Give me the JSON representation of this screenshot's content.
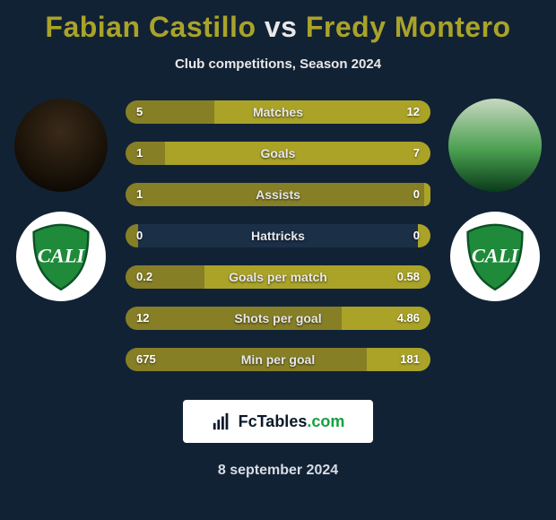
{
  "title": {
    "player1": "Fabian Castillo",
    "vs": "vs",
    "player2": "Fredy Montero"
  },
  "subtitle": "Club competitions, Season 2024",
  "colors": {
    "background": "#122235",
    "track": "#1b2f47",
    "left_fill": "#867f26",
    "right_fill": "#aaa328",
    "accent": "#aaa328",
    "text": "#e8e8e8"
  },
  "bars": [
    {
      "label": "Matches",
      "left": "5",
      "right": "12",
      "left_pct": 29,
      "right_pct": 71
    },
    {
      "label": "Goals",
      "left": "1",
      "right": "7",
      "left_pct": 13,
      "right_pct": 87
    },
    {
      "label": "Assists",
      "left": "1",
      "right": "0",
      "left_pct": 98,
      "right_pct": 2
    },
    {
      "label": "Hattricks",
      "left": "0",
      "right": "0",
      "left_pct": 4,
      "right_pct": 4
    },
    {
      "label": "Goals per match",
      "left": "0.2",
      "right": "0.58",
      "left_pct": 26,
      "right_pct": 74
    },
    {
      "label": "Shots per goal",
      "left": "12",
      "right": "4.86",
      "left_pct": 71,
      "right_pct": 29
    },
    {
      "label": "Min per goal",
      "left": "675",
      "right": "181",
      "left_pct": 79,
      "right_pct": 21
    }
  ],
  "bar_style": {
    "height": 26,
    "gap": 20,
    "radius": 13,
    "value_fontsize": 13,
    "label_fontsize": 14
  },
  "watermark": {
    "brand": "FcTables",
    "tld": ".com"
  },
  "date": "8 september 2024",
  "crest": {
    "bg": "#ffffff",
    "shield_fill": "#1f8a3a",
    "shield_stroke": "#0a3a1a",
    "text": "CALI",
    "text_color": "#ffffff"
  }
}
